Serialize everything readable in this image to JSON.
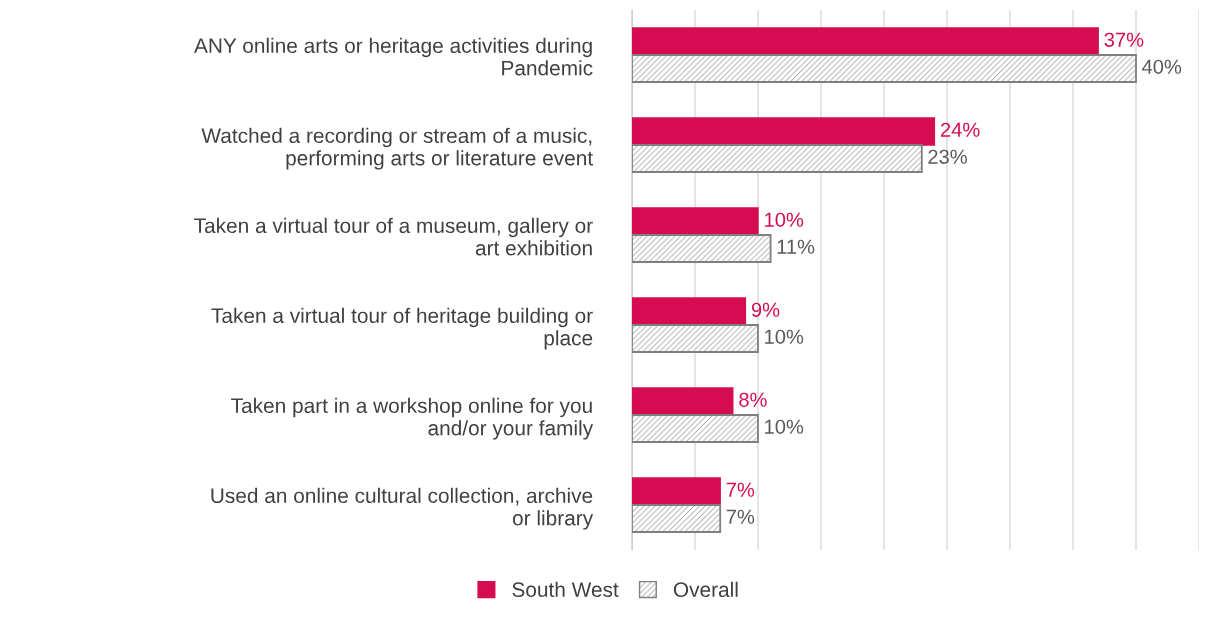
{
  "chart_data": {
    "type": "bar",
    "orientation": "horizontal",
    "categories": [
      "ANY online arts or heritage activities during Pandemic",
      "Watched a recording or stream of a music, performing arts or literature event",
      "Taken a virtual tour of a museum, gallery or art exhibition",
      "Taken a virtual tour of heritage building or place",
      "Taken part in a workshop online for you and/or your family",
      "Used an online cultural collection, archive or library"
    ],
    "series": [
      {
        "name": "South West",
        "color": "#d50c52",
        "values": [
          37,
          24,
          10,
          9,
          8,
          7
        ],
        "value_labels": [
          "37%",
          "24%",
          "10%",
          "9%",
          "8%",
          "7%"
        ]
      },
      {
        "name": "Overall",
        "color": "#7f7f7f",
        "values": [
          40,
          23,
          11,
          10,
          10,
          7
        ],
        "value_labels": [
          "40%",
          "23%",
          "11%",
          "10%",
          "10%",
          "7%"
        ]
      }
    ],
    "xlim": [
      0,
      45
    ],
    "xticks": [
      {
        "value": 0,
        "label": null
      },
      {
        "value": 5,
        "label": null
      },
      {
        "value": 10,
        "label": null
      },
      {
        "value": 15,
        "label": null
      },
      {
        "value": 20,
        "label": null
      },
      {
        "value": 25,
        "label": null
      },
      {
        "value": 30,
        "label": null
      },
      {
        "value": 35,
        "label": null
      },
      {
        "value": 40,
        "label": null
      },
      {
        "value": 45,
        "label": null
      }
    ],
    "grid": "x",
    "legend": "bottom",
    "tick_labels": "y"
  }
}
